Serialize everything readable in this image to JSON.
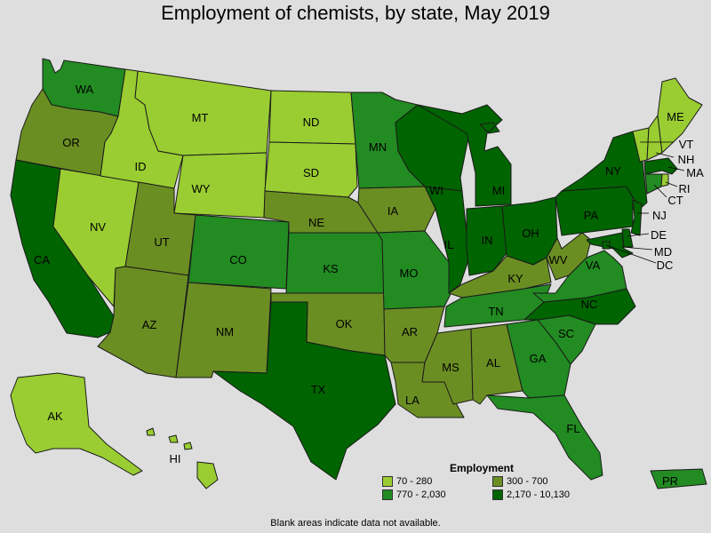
{
  "title": "Employment of chemists, by state, May 2019",
  "legend": {
    "title": "Employment",
    "items": [
      {
        "label": "70 - 280",
        "color": "#9acd32"
      },
      {
        "label": "300 - 700",
        "color": "#6b8e23"
      },
      {
        "label": "770 - 2,030",
        "color": "#228b22"
      },
      {
        "label": "2,170 - 10,130",
        "color": "#006400"
      }
    ]
  },
  "note": "Blank areas indicate data not available.",
  "map_data": {
    "states": [
      {
        "id": "WA",
        "tier": 2
      },
      {
        "id": "OR",
        "tier": 1
      },
      {
        "id": "CA",
        "tier": 3
      },
      {
        "id": "NV",
        "tier": 0
      },
      {
        "id": "ID",
        "tier": 0
      },
      {
        "id": "MT",
        "tier": 0
      },
      {
        "id": "WY",
        "tier": 0
      },
      {
        "id": "UT",
        "tier": 1
      },
      {
        "id": "AZ",
        "tier": 1
      },
      {
        "id": "CO",
        "tier": 2
      },
      {
        "id": "NM",
        "tier": 1
      },
      {
        "id": "ND",
        "tier": 0
      },
      {
        "id": "SD",
        "tier": 0
      },
      {
        "id": "NE",
        "tier": 1
      },
      {
        "id": "KS",
        "tier": 2
      },
      {
        "id": "OK",
        "tier": 1
      },
      {
        "id": "TX",
        "tier": 3
      },
      {
        "id": "MN",
        "tier": 2
      },
      {
        "id": "IA",
        "tier": 1
      },
      {
        "id": "MO",
        "tier": 2
      },
      {
        "id": "AR",
        "tier": 1
      },
      {
        "id": "LA",
        "tier": 1
      },
      {
        "id": "WI",
        "tier": 3
      },
      {
        "id": "IL",
        "tier": 3
      },
      {
        "id": "MI",
        "tier": 3
      },
      {
        "id": "IN",
        "tier": 3
      },
      {
        "id": "OH",
        "tier": 3
      },
      {
        "id": "KY",
        "tier": 1
      },
      {
        "id": "TN",
        "tier": 2
      },
      {
        "id": "MS",
        "tier": 1
      },
      {
        "id": "AL",
        "tier": 1
      },
      {
        "id": "GA",
        "tier": 2
      },
      {
        "id": "FL",
        "tier": 2
      },
      {
        "id": "SC",
        "tier": 2
      },
      {
        "id": "NC",
        "tier": 3
      },
      {
        "id": "VA",
        "tier": 2
      },
      {
        "id": "WV",
        "tier": 1
      },
      {
        "id": "PA",
        "tier": 3
      },
      {
        "id": "NY",
        "tier": 3
      },
      {
        "id": "VT",
        "tier": 0
      },
      {
        "id": "NH",
        "tier": 0
      },
      {
        "id": "ME",
        "tier": 0
      },
      {
        "id": "MA",
        "tier": 3
      },
      {
        "id": "CT",
        "tier": 2
      },
      {
        "id": "RI",
        "tier": 0
      },
      {
        "id": "NJ",
        "tier": 3
      },
      {
        "id": "DE",
        "tier": 3
      },
      {
        "id": "MD",
        "tier": 3
      },
      {
        "id": "DC",
        "tier": 3
      },
      {
        "id": "AK",
        "tier": 0
      },
      {
        "id": "HI",
        "tier": 0
      },
      {
        "id": "PR",
        "tier": 2
      }
    ]
  }
}
